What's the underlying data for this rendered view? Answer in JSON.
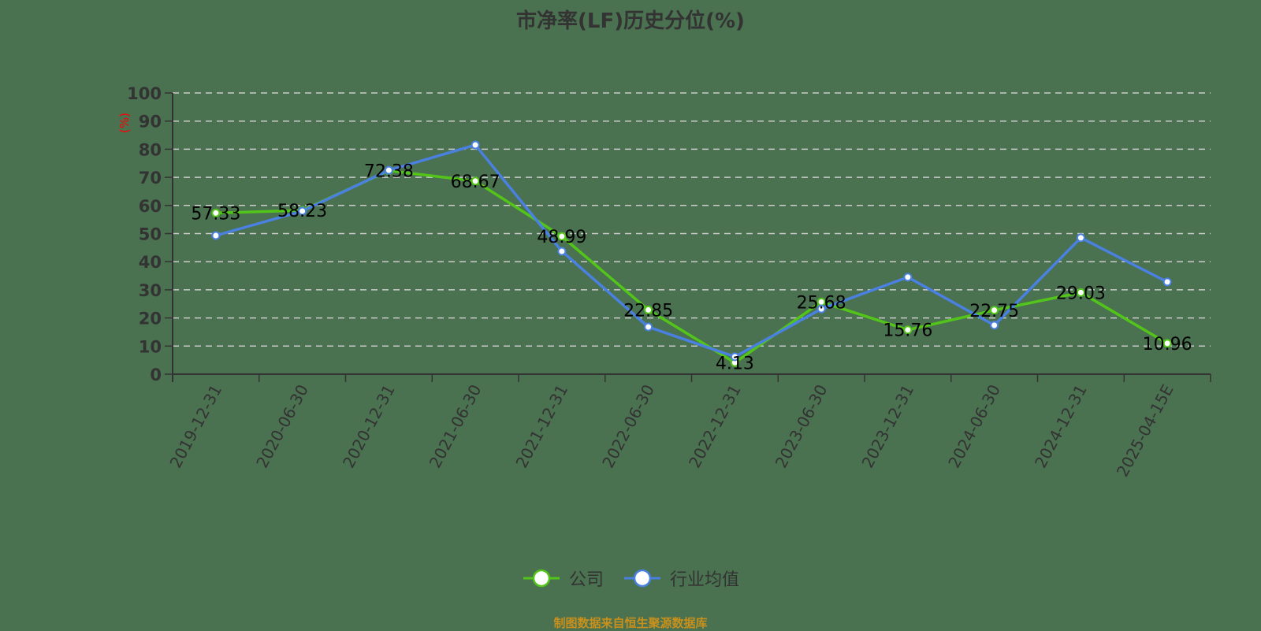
{
  "title": "市净率(LF)历史分位(%)",
  "footer": "制图数据来自恒生聚源数据库",
  "colors": {
    "background": "#4a7150",
    "company": "#52c41a",
    "industry": "#4a80e0",
    "axis": "#333333",
    "grid": "#cccccc",
    "unit_label": "#ff0000",
    "footer": "#c8901c"
  },
  "legend": {
    "items": [
      {
        "label": "公司",
        "color": "#52c41a"
      },
      {
        "label": "行业均值",
        "color": "#4a80e0"
      }
    ]
  },
  "chart_data": {
    "type": "line",
    "title": "市净率(LF)历史分位(%)",
    "xlabel": "",
    "ylabel": "(%)",
    "ylim": [
      0,
      100
    ],
    "yticks": [
      0,
      10,
      20,
      30,
      40,
      50,
      60,
      70,
      80,
      90,
      100
    ],
    "grid": true,
    "legend_position": "bottom",
    "categories": [
      "2019-12-31",
      "2020-06-30",
      "2020-12-31",
      "2021-06-30",
      "2021-12-31",
      "2022-06-30",
      "2022-12-31",
      "2023-06-30",
      "2023-12-31",
      "2024-06-30",
      "2024-12-31",
      "2025-04-15E"
    ],
    "series": [
      {
        "name": "公司",
        "values": [
          57.33,
          58.23,
          72.38,
          68.67,
          48.99,
          22.85,
          4.13,
          25.68,
          15.76,
          22.75,
          29.03,
          10.96
        ],
        "labels_shown": true
      },
      {
        "name": "行业均值",
        "values": [
          49.3,
          58.0,
          72.5,
          81.5,
          43.7,
          16.8,
          6.2,
          23.2,
          34.5,
          17.4,
          48.5,
          32.8
        ],
        "labels_shown": false
      }
    ]
  }
}
